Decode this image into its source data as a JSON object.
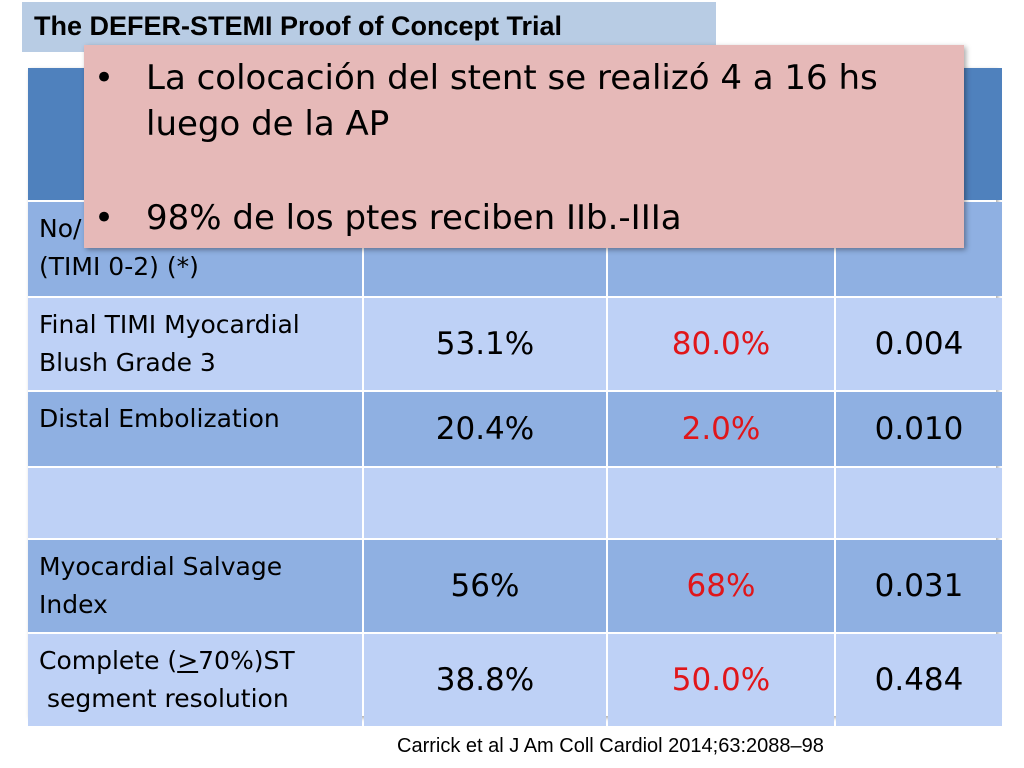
{
  "title": "The DEFER-STEMI Proof of Concept Trial",
  "overlay": {
    "bullet_char": "•",
    "bullets": [
      [
        "La colocación del stent se realizó 4 a 16 hs",
        "luego de la AP"
      ],
      [
        "98% de los ptes reciben IIb.-IIIa"
      ]
    ]
  },
  "table": {
    "rows": [
      {
        "label": [
          "No/",
          "(TIMI 0-2) (*)"
        ],
        "values": [
          "",
          "",
          ""
        ]
      },
      {
        "label": [
          "Final TIMI Myocardial",
          "Blush Grade 3"
        ],
        "values": [
          "53.1%",
          "80.0%",
          "0.004"
        ]
      },
      {
        "label": [
          "Distal Embolization"
        ],
        "values": [
          "20.4%",
          "2.0%",
          "0.010"
        ]
      },
      {
        "label": [
          ""
        ],
        "values": [
          "",
          "",
          ""
        ]
      },
      {
        "label": [
          "Myocardial Salvage",
          "Index"
        ],
        "values": [
          "56%",
          "68%",
          "0.031"
        ]
      },
      {
        "label_parts": [
          "Complete (",
          ">",
          "70%)ST",
          " segment resolution"
        ],
        "values": [
          "38.8%",
          "50.0%",
          "0.484"
        ]
      }
    ]
  },
  "citation": "Carrick et al  J Am Coll Cardiol 2014;63:2088–98",
  "colors": {
    "header": "#4f81bd",
    "row_dark": "#8fb0e2",
    "row_light": "#bed1f6",
    "overlay": "#e6b9b8",
    "title_box": "#b8cce4",
    "highlight_red": "#e0161a"
  }
}
